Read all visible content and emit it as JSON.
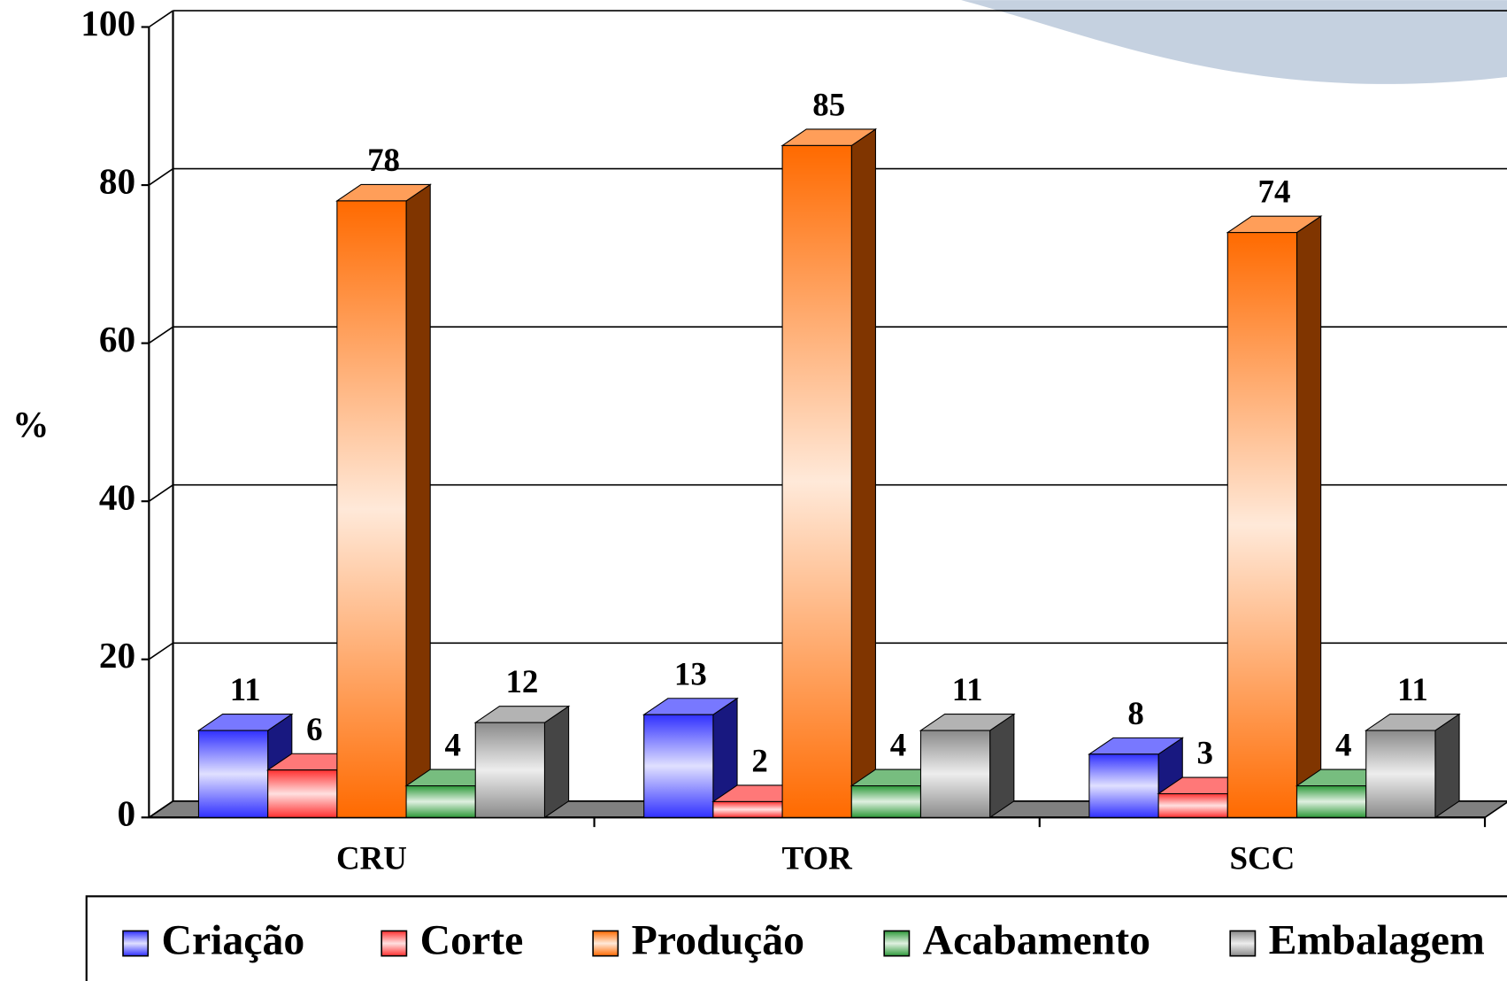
{
  "chart_data": {
    "type": "bar3d",
    "y_label": "%",
    "categories": [
      "CRU",
      "TOR",
      "SCC"
    ],
    "series": [
      {
        "name": "Criação",
        "color": "#3030ff",
        "values": [
          11,
          13,
          8
        ]
      },
      {
        "name": "Corte",
        "color": "#ff3030",
        "values": [
          6,
          2,
          3
        ]
      },
      {
        "name": "Produção",
        "color": "#ff6a00",
        "values": [
          78,
          85,
          74
        ]
      },
      {
        "name": "Acabamento",
        "color": "#2e9a3a",
        "values": [
          4,
          4,
          4
        ]
      },
      {
        "name": "Embalagem",
        "color": "#8a8a8a",
        "values": [
          12,
          11,
          11
        ]
      }
    ],
    "ylim": [
      0,
      100
    ],
    "yticks": [
      0,
      20,
      40,
      60,
      80,
      100
    ],
    "grid": true,
    "legend": "bottom"
  }
}
